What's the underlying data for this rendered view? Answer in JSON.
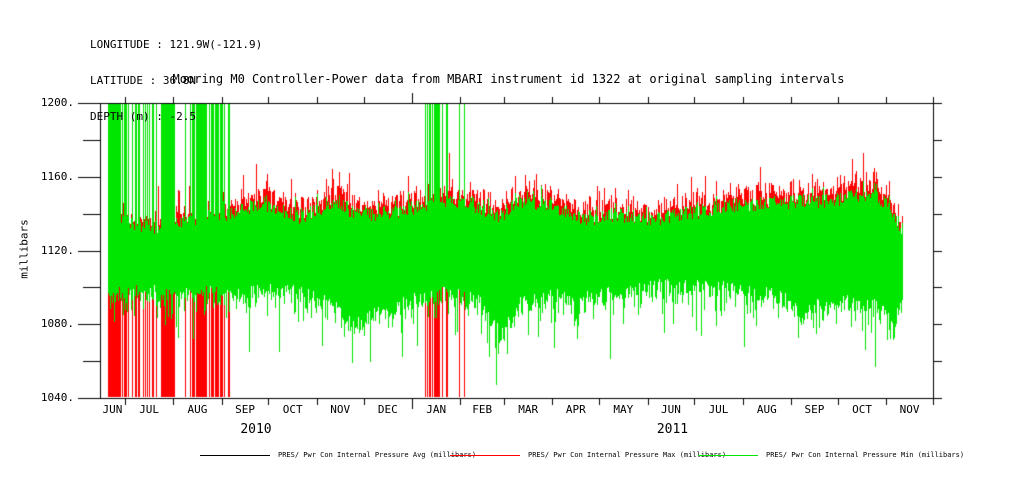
{
  "header": {
    "longitude": "LONGITUDE : 121.9W(-121.9)",
    "latitude": "LATITUDE : 36.8N",
    "depth": "DEPTH (m) : -2.5"
  },
  "chart_data": {
    "type": "line",
    "title": "Mooring M0 Controller-Power data from MBARI instrument id 1322 at original sampling intervals",
    "ylabel": "millibars",
    "ylim": [
      1040,
      1200
    ],
    "y_major_ticks": [
      1200,
      1160,
      1120,
      1080,
      1040
    ],
    "y_major_labels": [
      "1200.",
      "1160.",
      "1120.",
      "1080.",
      "1040."
    ],
    "y_minor_ticks": [
      1180,
      1140,
      1100,
      1060
    ],
    "x_domain": [
      "2010-06-15",
      "2011-12-01"
    ],
    "x_month_labels": [
      "JUN",
      "JUL",
      "AUG",
      "SEP",
      "OCT",
      "NOV",
      "DEC",
      "JAN",
      "FEB",
      "MAR",
      "APR",
      "MAY",
      "JUN",
      "JUL",
      "AUG",
      "SEP",
      "OCT",
      "NOV"
    ],
    "x_year_labels": [
      "2010",
      "2011"
    ],
    "year_boundary": "2011-01-01",
    "data_range": [
      "2010-06-20",
      "2011-11-11"
    ],
    "grid": false,
    "legend_position": "bottom",
    "series": [
      {
        "name": "PRES/ Pwr Con Internal Pressure Avg (millibars)",
        "color": "#000000",
        "role": "avg"
      },
      {
        "name": "PRES/ Pwr Con Internal Pressure Max (millibars)",
        "color": "#ff0000",
        "role": "max"
      },
      {
        "name": "PRES/ Pwr Con Internal Pressure Min (millibars)",
        "color": "#00e600",
        "role": "min"
      }
    ],
    "envelope_keyframes": [
      [
        0.008,
        1096,
        1136,
        8
      ],
      [
        0.06,
        1097,
        1132,
        7
      ],
      [
        0.12,
        1096,
        1138,
        9
      ],
      [
        0.16,
        1095,
        1140,
        8
      ],
      [
        0.194,
        1098,
        1146,
        10
      ],
      [
        0.24,
        1096,
        1138,
        8
      ],
      [
        0.286,
        1090,
        1147,
        13
      ],
      [
        0.302,
        1077,
        1141,
        8
      ],
      [
        0.33,
        1086,
        1139,
        8
      ],
      [
        0.372,
        1092,
        1143,
        9
      ],
      [
        0.414,
        1096,
        1147,
        10
      ],
      [
        0.456,
        1092,
        1143,
        9
      ],
      [
        0.48,
        1073,
        1139,
        8
      ],
      [
        0.504,
        1090,
        1147,
        9
      ],
      [
        0.54,
        1095,
        1145,
        10
      ],
      [
        0.576,
        1093,
        1137,
        8
      ],
      [
        0.624,
        1096,
        1139,
        9
      ],
      [
        0.672,
        1100,
        1137,
        8
      ],
      [
        0.72,
        1100,
        1141,
        9
      ],
      [
        0.768,
        1098,
        1145,
        10
      ],
      [
        0.816,
        1095,
        1145,
        10
      ],
      [
        0.84,
        1086,
        1147,
        9
      ],
      [
        0.876,
        1092,
        1147,
        10
      ],
      [
        0.924,
        1090,
        1151,
        12
      ],
      [
        0.948,
        1084,
        1144,
        9
      ],
      [
        0.964,
        1092,
        1130,
        6
      ]
    ],
    "bad_data_clusters": [
      [
        "2010-06-19",
        "2010-07-03",
        0.9
      ],
      [
        "2010-07-03",
        "2010-07-24",
        0.3
      ],
      [
        "2010-07-24",
        "2010-08-02",
        0.85
      ],
      [
        "2010-08-02",
        "2010-08-13",
        0.25
      ],
      [
        "2010-08-13",
        "2010-09-07",
        0.8
      ],
      [
        "2011-01-09",
        "2011-01-16",
        0.45
      ],
      [
        "2011-01-16",
        "2011-01-19",
        1.0
      ],
      [
        "2011-01-19",
        "2011-02-04",
        0.33
      ]
    ],
    "bad_data_extent": [
      1040,
      1200
    ],
    "noise": {
      "hi_jitter": 4,
      "lo_jitter": 5,
      "descender_prob": 0.32,
      "descender_max": 12,
      "deep_descender_prob": 0.07,
      "deep_descender_max": 22,
      "red_spike_prob": 0.035,
      "red_spike_extra": 14,
      "red_cap": 1173
    },
    "seed": 11
  }
}
